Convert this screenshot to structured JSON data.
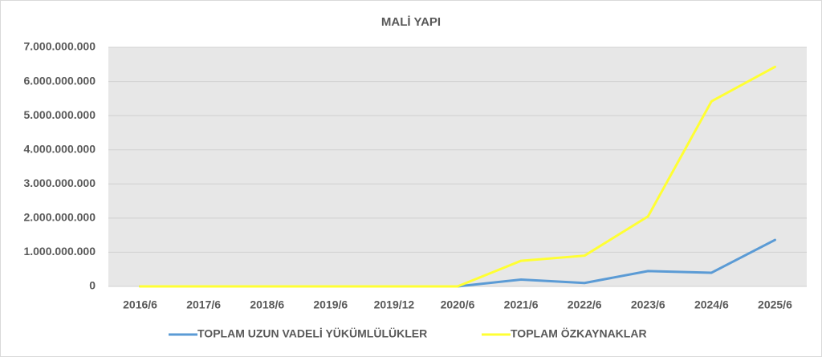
{
  "chart_data": {
    "type": "line",
    "title": "MALİ YAPI",
    "categories": [
      "2016/6",
      "2017/6",
      "2018/6",
      "2019/6",
      "2019/12",
      "2020/6",
      "2021/6",
      "2022/6",
      "2023/6",
      "2024/6",
      "2025/6"
    ],
    "series": [
      {
        "name": "TOPLAM UZUN VADELİ YÜKÜMLÜLÜKLER",
        "color": "#5b9bd5",
        "values": [
          0,
          0,
          0,
          0,
          0,
          0,
          200000000,
          100000000,
          450000000,
          400000000,
          1360000000
        ]
      },
      {
        "name": "TOPLAM ÖZKAYNAKLAR",
        "color": "#ffff33",
        "values": [
          0,
          0,
          0,
          0,
          0,
          0,
          750000000,
          900000000,
          2050000000,
          5420000000,
          6430000000
        ]
      }
    ],
    "ylim": [
      0,
      7000000000
    ],
    "yticks": [
      0,
      {
        "value": 1000000000,
        "label": "1.000.000.000"
      },
      {
        "value": 2000000000,
        "label": "2.000.000.000"
      },
      {
        "value": 3000000000,
        "label": "3.000.000.000"
      },
      {
        "value": 4000000000,
        "label": "4.000.000.000"
      },
      {
        "value": 5000000000,
        "label": "5.000.000.000"
      },
      {
        "value": 6000000000,
        "label": "6.000.000.000"
      },
      {
        "value": 7000000000,
        "label": "7.000.000.000"
      }
    ],
    "grid": true,
    "legend": "bottom"
  }
}
